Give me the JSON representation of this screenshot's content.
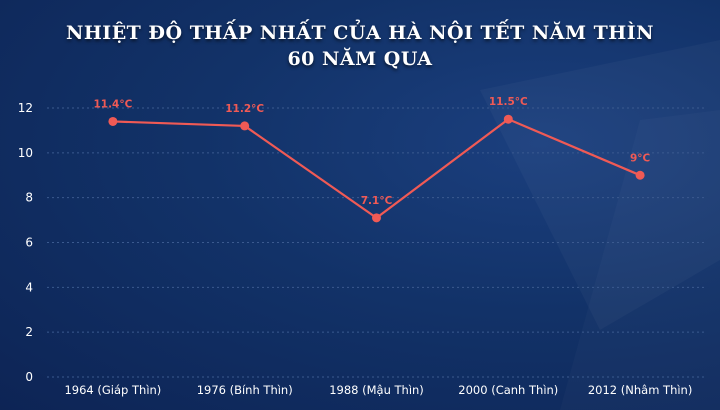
{
  "title_line1": "NHIỆT ĐỘ THẤP NHẤT CỦA HÀ NỘI TẾT NĂM THÌN",
  "title_line2": "60 NĂM QUA",
  "colors": {
    "background": "#0f2a5c",
    "line": "#f05a55",
    "axis_text": "#ffffff",
    "grid": "#3b5a8f"
  },
  "chart_data": {
    "type": "line",
    "categories": [
      "1964 (Giáp Thìn)",
      "1976 (Bính Thìn)",
      "1988 (Mậu Thìn)",
      "2000 (Canh Thìn)",
      "2012 (Nhâm Thìn)"
    ],
    "series": [
      {
        "values": [
          11.4,
          11.2,
          7.1,
          11.5,
          9
        ]
      }
    ],
    "data_labels": [
      "11.4°C",
      "11.2°C",
      "7.1°C",
      "11.5°C",
      "9°C"
    ],
    "y_ticks": [
      0,
      2,
      4,
      6,
      8,
      10,
      12
    ],
    "ylim": [
      0,
      12
    ],
    "grid": true
  }
}
